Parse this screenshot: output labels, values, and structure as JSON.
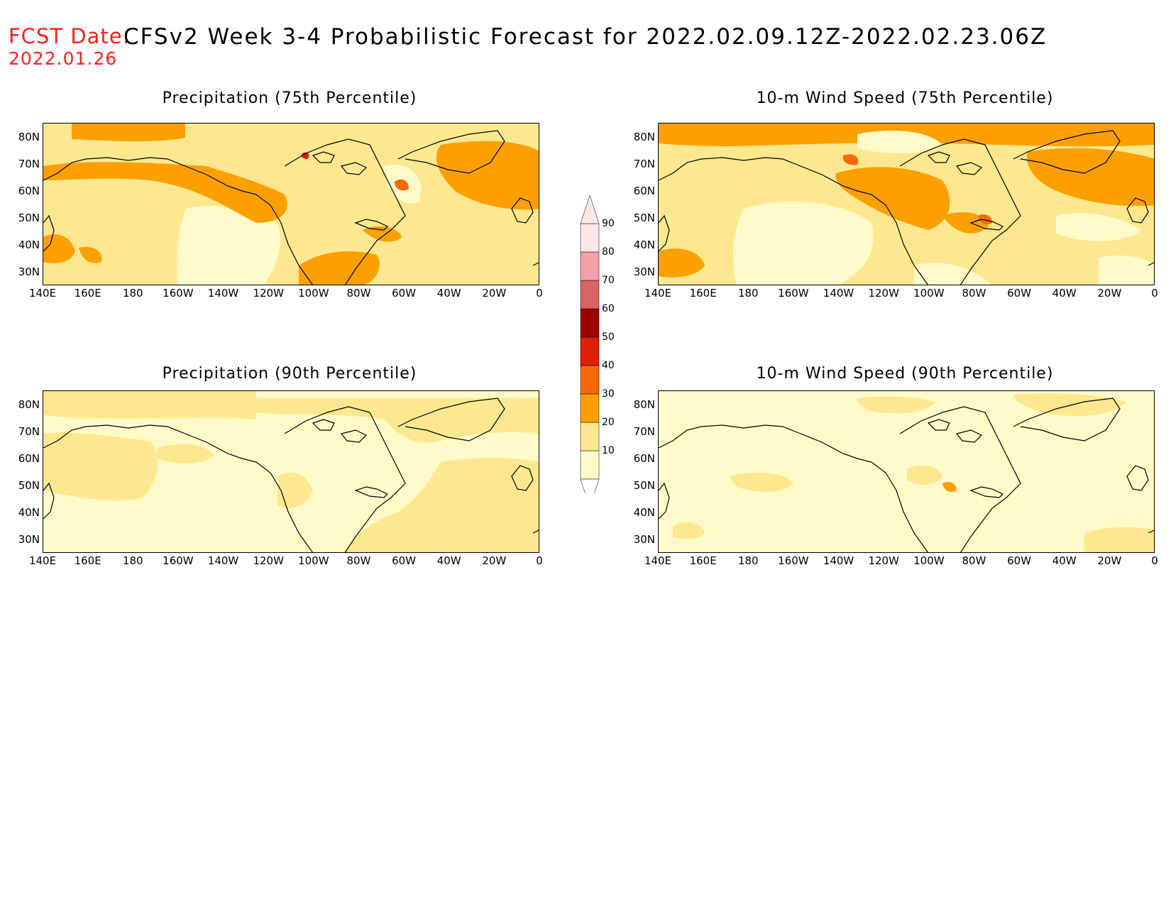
{
  "header": {
    "fcst_label": "FCST Date:",
    "fcst_date": "2022.01.26",
    "title": "CFSv2 Week 3-4 Probabilistic Forecast for 2022.02.09.12Z-2022.02.23.06Z"
  },
  "lat_ticks": [
    "80N",
    "70N",
    "60N",
    "50N",
    "40N",
    "30N"
  ],
  "lon_ticks": [
    "140E",
    "160E",
    "180",
    "160W",
    "140W",
    "120W",
    "100W",
    "80W",
    "60W",
    "40W",
    "20W",
    "0"
  ],
  "panels": [
    {
      "title": "Precipitation (75th Percentile)",
      "field": "precip75"
    },
    {
      "title": "10-m Wind Speed (75th Percentile)",
      "field": "wind75"
    },
    {
      "title": "Precipitation (90th Percentile)",
      "field": "precip90"
    },
    {
      "title": "10-m Wind Speed (90th Percentile)",
      "field": "wind90"
    }
  ],
  "colorbar": {
    "levels": [
      "10",
      "20",
      "30",
      "40",
      "50",
      "60",
      "70",
      "80",
      "90"
    ],
    "colors": [
      "#fffac8",
      "#fde890",
      "#fca000",
      "#f66a00",
      "#e01e00",
      "#a00000",
      "#d86464",
      "#f4a0a8",
      "#ffe6ea"
    ]
  },
  "map_colors": {
    "light": "#fffac8",
    "yellow": "#fde890",
    "orange": "#fca000",
    "dark_orange": "#f66a00",
    "red": "#e01e00"
  }
}
